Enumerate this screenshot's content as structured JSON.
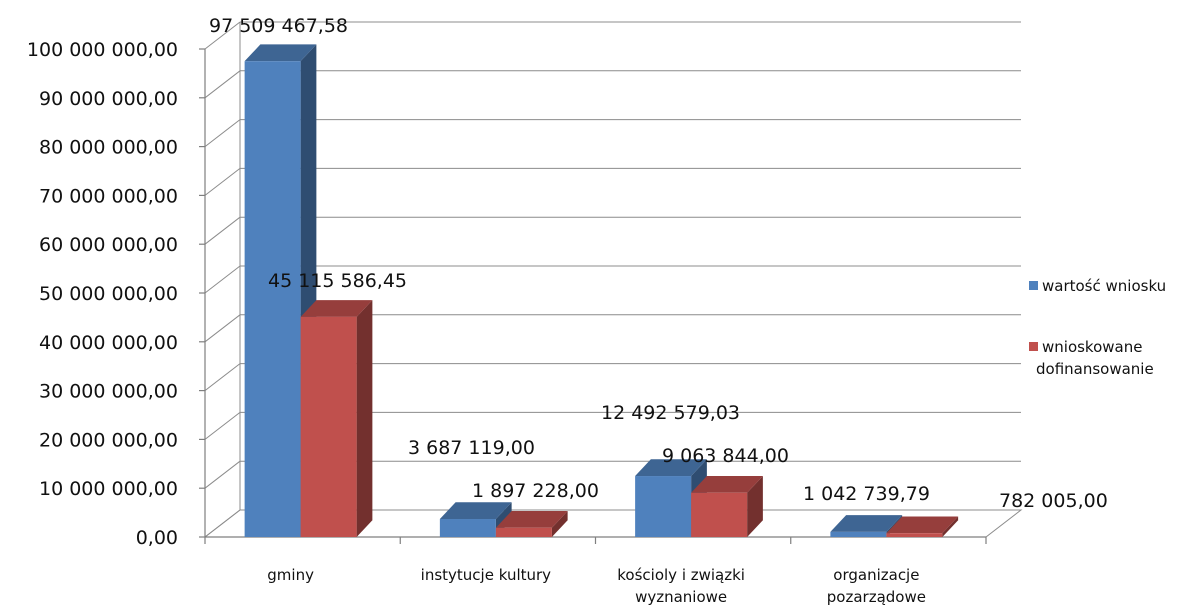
{
  "chart_data": {
    "type": "bar",
    "categories": [
      [
        "gminy"
      ],
      [
        "instytucje kultury"
      ],
      [
        "kościoly i związki",
        "wyznaniowe"
      ],
      [
        "organizacje",
        "pozarządowe"
      ]
    ],
    "series": [
      {
        "name": [
          "wartość wniosku"
        ],
        "color": "#4F81BD",
        "values": [
          97509467.58,
          3687119.0,
          12492579.03,
          1042739.79
        ],
        "labels": [
          "97 509 467,58",
          "3 687 119,00",
          "12 492 579,03",
          "1 042 739,79"
        ]
      },
      {
        "name": [
          "wnioskowane",
          "dofinansowanie"
        ],
        "color": "#C0504D",
        "values": [
          45115586.45,
          1897228.0,
          9063844.0,
          782005.0
        ],
        "labels": [
          "45 115 586,45",
          "1 897 228,00",
          "9 063 844,00",
          "782 005,00"
        ]
      }
    ],
    "yticks": [
      "0,00",
      "10 000 000,00",
      "20 000 000,00",
      "30 000 000,00",
      "40 000 000,00",
      "50 000 000,00",
      "60 000 000,00",
      "70 000 000,00",
      "80 000 000,00",
      "90 000 000,00",
      "100 000 000,00"
    ],
    "ylim": [
      0,
      100000000
    ],
    "grid": true,
    "legend": "right",
    "three_d": true
  }
}
